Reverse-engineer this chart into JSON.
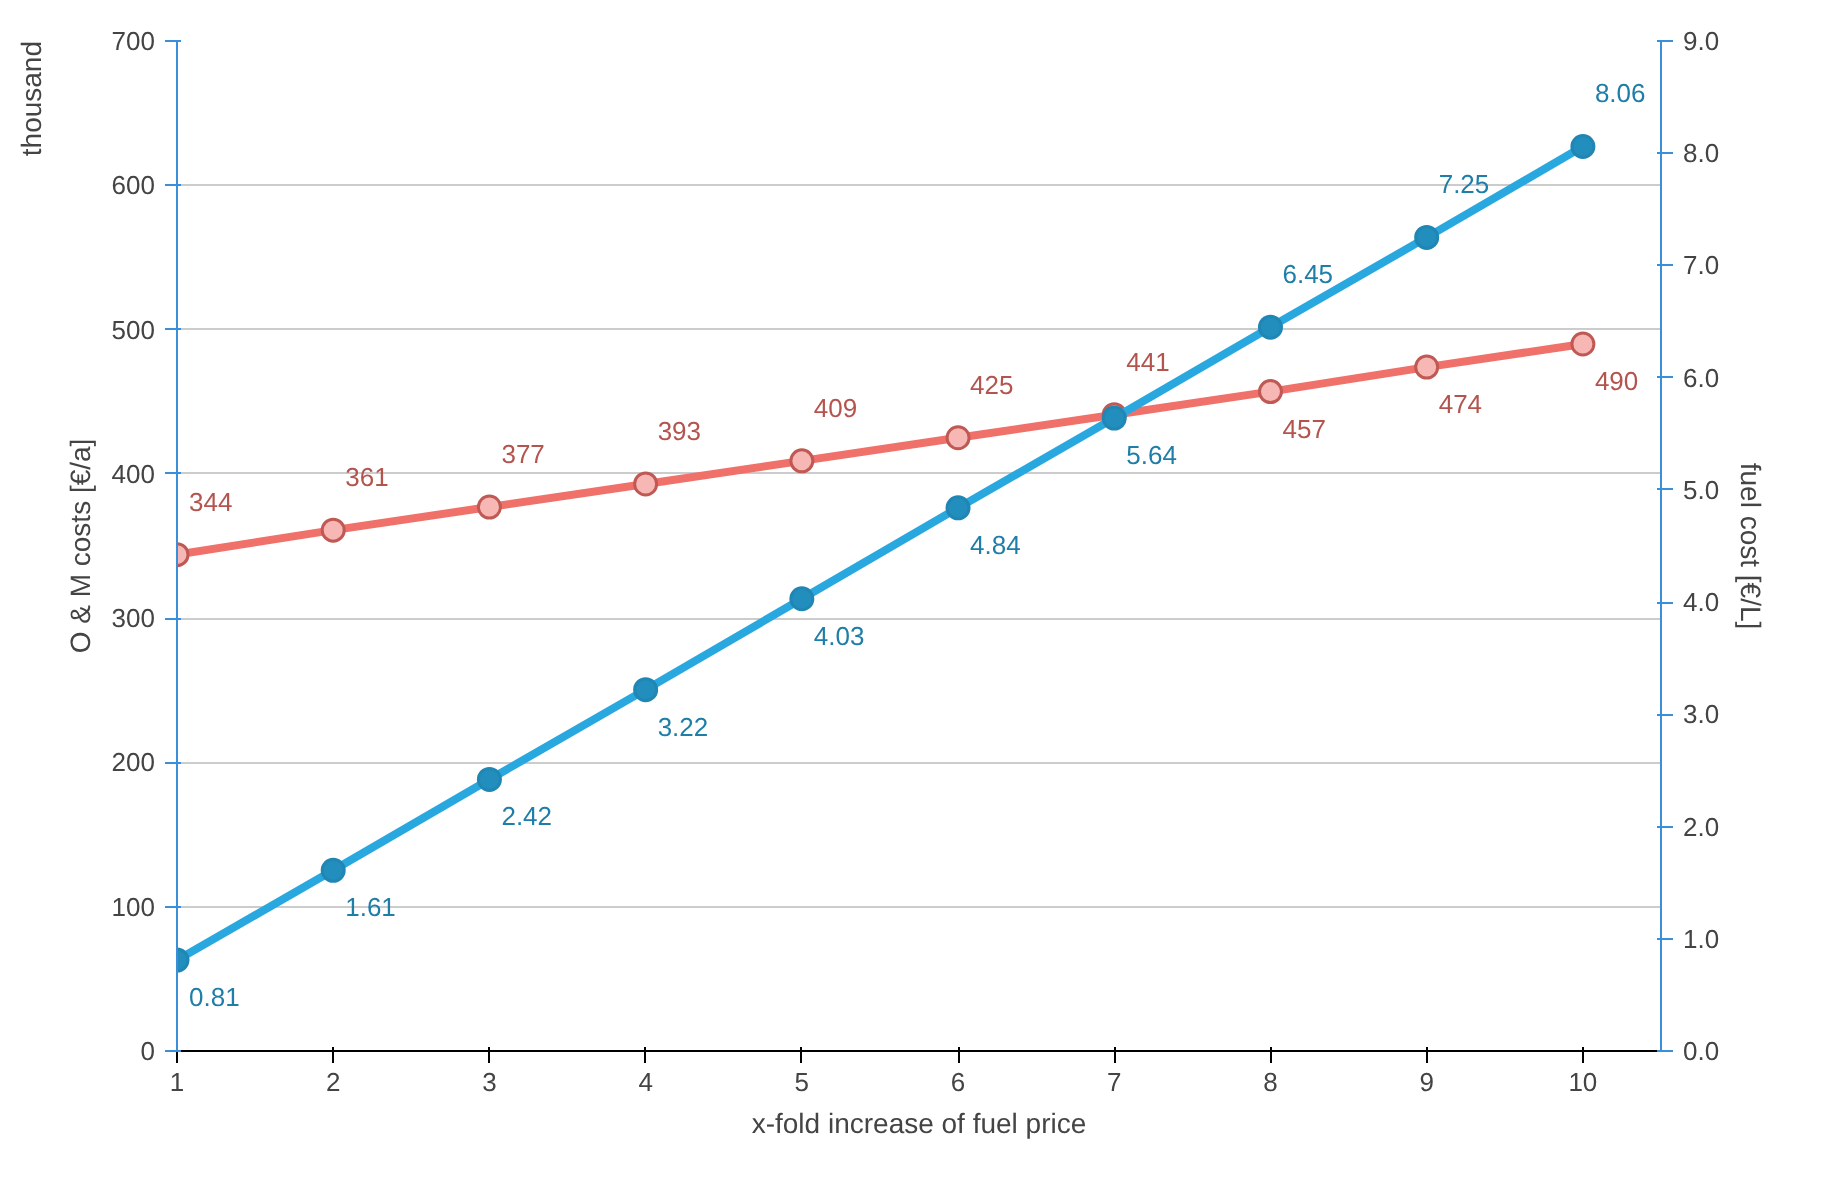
{
  "chart_data": {
    "type": "line",
    "xlabel": "x-fold increase of fuel price",
    "ylabel": "O & M costs [€/a]",
    "y2label": "fuel cost [€/L]",
    "annotations": [
      "thousand"
    ],
    "x": [
      1,
      2,
      3,
      4,
      5,
      6,
      7,
      8,
      9,
      10
    ],
    "xlim": [
      1,
      10.5
    ],
    "xticks": [
      1,
      2,
      3,
      4,
      5,
      6,
      7,
      8,
      9,
      10
    ],
    "ylim": [
      0,
      700
    ],
    "yticks": [
      0,
      100,
      200,
      300,
      400,
      500,
      600,
      700
    ],
    "y2lim": [
      0,
      9
    ],
    "y2ticks": [
      {
        "value": 0,
        "label": "0.0"
      },
      {
        "value": 1,
        "label": "1.0"
      },
      {
        "value": 2,
        "label": "2.0"
      },
      {
        "value": 3,
        "label": "3.0"
      },
      {
        "value": 4,
        "label": "4.0"
      },
      {
        "value": 5,
        "label": "5.0"
      },
      {
        "value": 6,
        "label": "6.0"
      },
      {
        "value": 7,
        "label": "7.0"
      },
      {
        "value": 8,
        "label": "8.0"
      },
      {
        "value": 9,
        "label": "9.0"
      }
    ],
    "series": [
      {
        "color": "#f0706a",
        "values": [
          344,
          361,
          377,
          393,
          409,
          425,
          441,
          457,
          474,
          490
        ]
      },
      {
        "color": "#29a8e0",
        "axis": "y2",
        "values": [
          0.81,
          1.61,
          2.42,
          3.22,
          4.03,
          4.84,
          5.64,
          6.45,
          7.25,
          8.06
        ]
      }
    ],
    "grid": "y",
    "marker": "circle",
    "line_style": "solid",
    "data_labels": true
  }
}
